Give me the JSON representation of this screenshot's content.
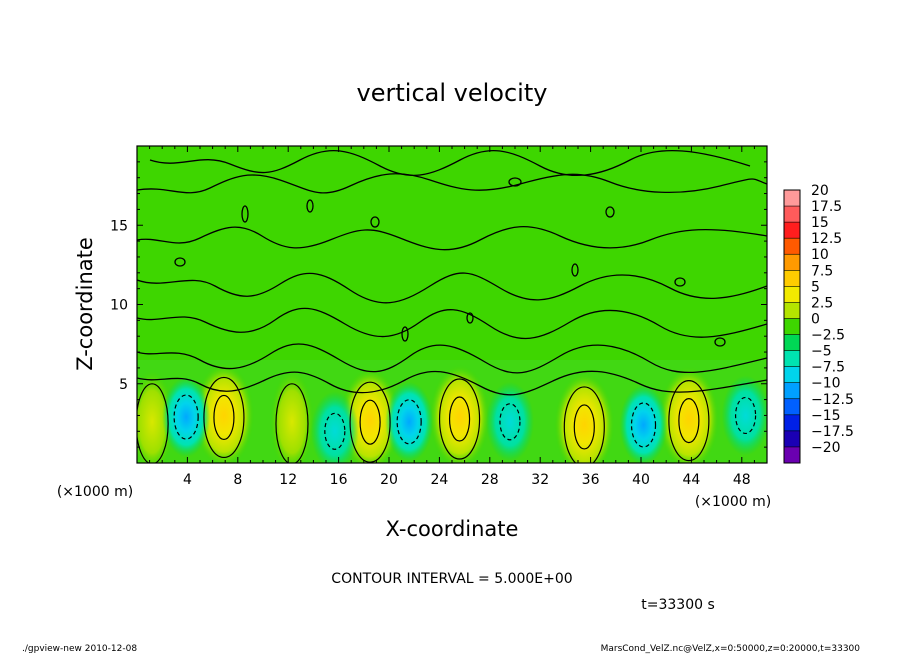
{
  "chart_data": {
    "type": "heatmap",
    "title": "vertical velocity",
    "xlabel": "X-coordinate",
    "ylabel": "Z-coordinate",
    "x_unit": "(×1000 m)",
    "xlim": [
      0,
      50
    ],
    "ylim": [
      0,
      20
    ],
    "x_ticks": [
      4,
      8,
      12,
      16,
      20,
      24,
      28,
      32,
      36,
      40,
      44,
      48
    ],
    "y_ticks": [
      5,
      10,
      15
    ],
    "colorbar": {
      "labels": [
        "20",
        "17.5",
        "15",
        "12.5",
        "10",
        "7.5",
        "5",
        "2.5",
        "0",
        "-2.5",
        "-5",
        "-7.5",
        "-10",
        "-12.5",
        "-15",
        "-17.5",
        "-20"
      ],
      "colors": [
        "#ff9a9a",
        "#ff5b5b",
        "#ff1e1e",
        "#ff5a00",
        "#ff9a00",
        "#ffcc00",
        "#f2ea00",
        "#b4e400",
        "#3ed600",
        "#00d855",
        "#00e3b0",
        "#00d4ec",
        "#00a0ff",
        "#0060ff",
        "#0020e6",
        "#1a00b4",
        "#6a00b0"
      ]
    },
    "updrafts": [
      {
        "x": 6.9,
        "z": 3.0,
        "peak": 8
      },
      {
        "x": 18.5,
        "z": 2.7,
        "peak": 6
      },
      {
        "x": 25.6,
        "z": 2.9,
        "peak": 8
      },
      {
        "x": 35.5,
        "z": 2.4,
        "peak": 6
      },
      {
        "x": 43.8,
        "z": 2.8,
        "peak": 8
      },
      {
        "x": 1.2,
        "z": 2.6,
        "peak": 4
      },
      {
        "x": 12.3,
        "z": 2.6,
        "peak": 4
      }
    ],
    "downdrafts": [
      {
        "x": 3.9,
        "z": 2.9,
        "peak": -8
      },
      {
        "x": 15.7,
        "z": 2.0,
        "peak": -5
      },
      {
        "x": 21.6,
        "z": 2.6,
        "peak": -6
      },
      {
        "x": 29.6,
        "z": 2.6,
        "peak": -5
      },
      {
        "x": 40.2,
        "z": 2.4,
        "peak": -8
      },
      {
        "x": 48.3,
        "z": 3.0,
        "peak": -5
      }
    ],
    "contour_interval_text": "CONTOUR INTERVAL = 5.000E+00",
    "time_text": "t=33300 s"
  },
  "footer": {
    "left": "./gpview-new   2010-12-08",
    "right": "MarsCond_VelZ.nc@VelZ,x=0:50000,z=0:20000,t=33300"
  }
}
